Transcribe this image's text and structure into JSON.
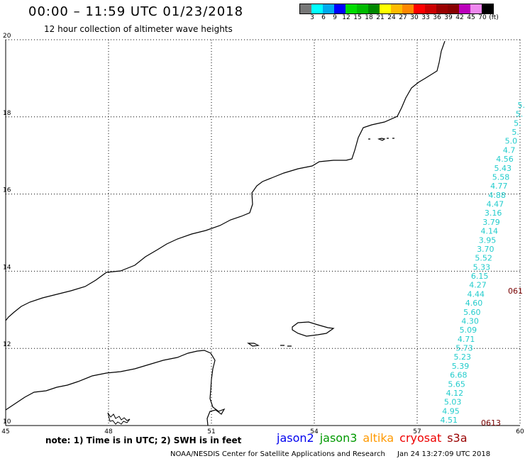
{
  "header": {
    "title": "00:00 – 11:59 UTC 01/23/2018",
    "subtitle": "12 hour collection of altimeter wave heights"
  },
  "colorbar": {
    "swatches": [
      "#777777",
      "#00ffff",
      "#00aaee",
      "#0000ff",
      "#00dd00",
      "#00bb00",
      "#008800",
      "#ffff00",
      "#ffbb00",
      "#ff8800",
      "#ff0000",
      "#cc0000",
      "#990000",
      "#880000",
      "#bb00bb",
      "#ee88ee",
      "#000000"
    ],
    "labels": [
      "3",
      "6",
      "9",
      "12",
      "15",
      "18",
      "21",
      "24",
      "27",
      "30",
      "33",
      "36",
      "39",
      "42",
      "45",
      "70",
      "(ft)"
    ]
  },
  "axes": {
    "lon_ticks": [
      "45",
      "48",
      "51",
      "54",
      "57",
      "60"
    ],
    "lat_ticks": [
      "10",
      "12",
      "14",
      "16",
      "18",
      "20"
    ]
  },
  "track": {
    "color": "#22cccc",
    "values": [
      "5.",
      "5.",
      "5.",
      "5.",
      "5.0",
      "4.7",
      "4.56",
      "5.43",
      "5.58",
      "4.77",
      "4.88",
      "4.47",
      "3.16",
      "3.79",
      "4.14",
      "3.95",
      "3.70",
      "5.52",
      "5.33",
      "6.15",
      "4.27",
      "4.44",
      "4.60",
      "5.60",
      "4.30",
      "5.09",
      "4.71",
      "5.73",
      "5.23",
      "5.39",
      "6.68",
      "5.65",
      "4.12",
      "5.03",
      "4.95",
      "4.51"
    ]
  },
  "buoys": [
    {
      "label": "0613",
      "color": "#770000"
    },
    {
      "label": "061",
      "color": "#770000"
    }
  ],
  "note": "note:  1) Time is in UTC;  2) SWH is in feet",
  "satellites": [
    {
      "name": "jason2",
      "color": "#0000ee"
    },
    {
      "name": "jason3",
      "color": "#009900"
    },
    {
      "name": "altika",
      "color": "#ff9900"
    },
    {
      "name": "cryosat",
      "color": "#ee0000"
    },
    {
      "name": "s3a",
      "color": "#990000"
    }
  ],
  "footer": {
    "credit": "NOAA/NESDIS Center for Satellite Applications and Research",
    "timestamp": "Jan 24 13:27:09 UTC 2018"
  }
}
